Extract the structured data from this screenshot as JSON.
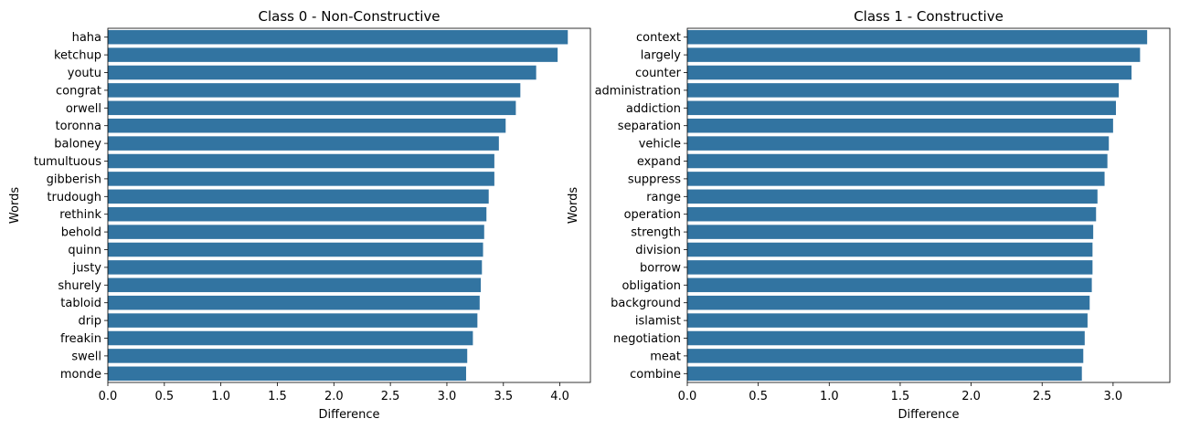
{
  "chart_data": [
    {
      "type": "bar",
      "orientation": "horizontal",
      "title": "Class 0 - Non-Constructive",
      "xlabel": "Difference",
      "ylabel": "Words",
      "xlim": [
        0,
        4.27
      ],
      "xticks": [
        "0.0",
        "0.5",
        "1.0",
        "1.5",
        "2.0",
        "2.5",
        "3.0",
        "3.5",
        "4.0"
      ],
      "bar_color": "#3274a1",
      "categories": [
        "haha",
        "ketchup",
        "youtu",
        "congrat",
        "orwell",
        "toronna",
        "baloney",
        "tumultuous",
        "gibberish",
        "trudough",
        "rethink",
        "behold",
        "quinn",
        "justy",
        "shurely",
        "tabloid",
        "drip",
        "freakin",
        "swell",
        "monde"
      ],
      "values": [
        4.07,
        3.98,
        3.79,
        3.65,
        3.61,
        3.52,
        3.46,
        3.42,
        3.42,
        3.37,
        3.35,
        3.33,
        3.32,
        3.31,
        3.3,
        3.29,
        3.27,
        3.23,
        3.18,
        3.17
      ]
    },
    {
      "type": "bar",
      "orientation": "horizontal",
      "title": "Class 1 - Constructive",
      "xlabel": "Difference",
      "ylabel": "Words",
      "xlim": [
        0,
        3.4
      ],
      "xticks": [
        "0.0",
        "0.5",
        "1.0",
        "1.5",
        "2.0",
        "2.5",
        "3.0"
      ],
      "bar_color": "#3274a1",
      "categories": [
        "context",
        "largely",
        "counter",
        "administration",
        "addiction",
        "separation",
        "vehicle",
        "expand",
        "suppress",
        "range",
        "operation",
        "strength",
        "division",
        "borrow",
        "obligation",
        "background",
        "islamist",
        "negotiation",
        "meat",
        "combine"
      ],
      "values": [
        3.24,
        3.19,
        3.13,
        3.04,
        3.02,
        3.0,
        2.97,
        2.96,
        2.94,
        2.89,
        2.88,
        2.86,
        2.855,
        2.855,
        2.85,
        2.835,
        2.82,
        2.8,
        2.79,
        2.78
      ]
    }
  ]
}
